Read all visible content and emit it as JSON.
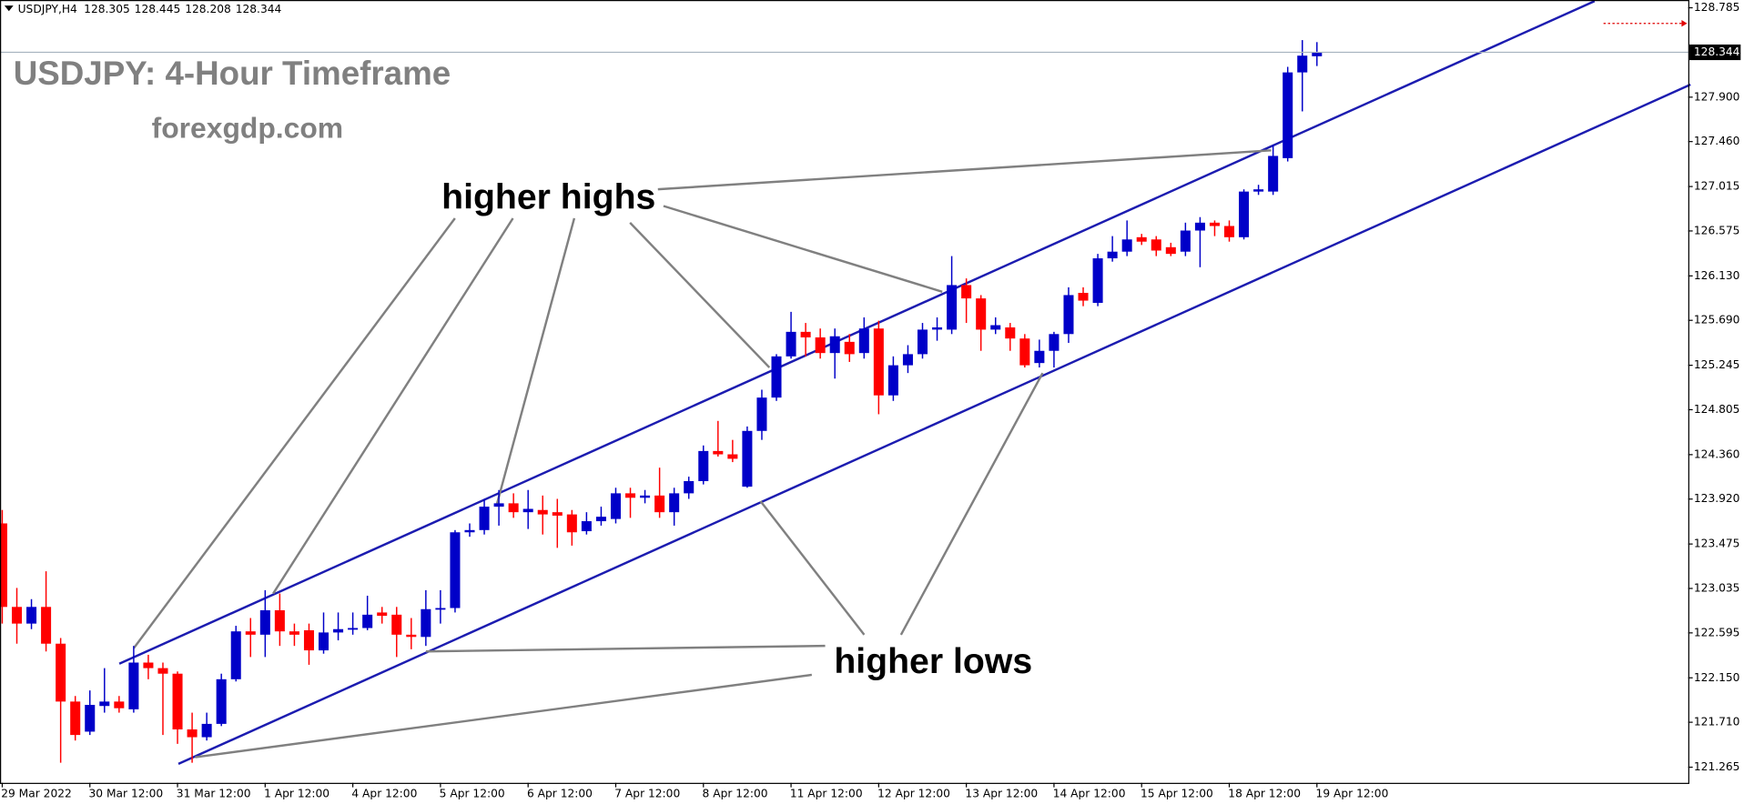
{
  "chart_data": {
    "type": "candlestick",
    "symbol": "USDJPY,H4",
    "title": "USDJPY: 4-Hour Timeframe",
    "subtitle": "forexgdp.com",
    "annotations": [
      "higher highs",
      "higher lows"
    ],
    "up_color": "#0000c8",
    "down_color": "#ff0000",
    "categories": [
      "29 Mar 2022",
      null,
      null,
      null,
      null,
      null,
      "30 Mar 12:00",
      null,
      null,
      null,
      null,
      null,
      "31 Mar 12:00",
      null,
      null,
      null,
      null,
      null,
      "1 Apr 12:00",
      null,
      null,
      null,
      null,
      null,
      "4 Apr 12:00",
      null,
      null,
      null,
      null,
      null,
      "5 Apr 12:00",
      null,
      null,
      null,
      null,
      null,
      "6 Apr 12:00",
      null,
      null,
      null,
      null,
      null,
      "7 Apr 12:00",
      null,
      null,
      null,
      null,
      null,
      "8 Apr 12:00",
      null,
      null,
      null,
      null,
      null,
      "11 Apr 12:00",
      null,
      null,
      null,
      null,
      null,
      "12 Apr 12:00",
      null,
      null,
      null,
      null,
      null,
      "13 Apr 12:00",
      null,
      null,
      null,
      null,
      null,
      "14 Apr 12:00",
      null,
      null,
      null,
      null,
      null,
      "15 Apr 12:00",
      null,
      null,
      null,
      null,
      null,
      "18 Apr 12:00",
      null,
      null,
      null,
      null,
      null,
      "19 Apr 12:00"
    ],
    "open": [
      123.679,
      122.852,
      122.687,
      122.852,
      122.488,
      121.915,
      121.617,
      121.871,
      121.915,
      121.838,
      122.301,
      122.246,
      122.191,
      121.639,
      121.562,
      121.694,
      122.136,
      122.61,
      122.577,
      122.819,
      122.61,
      122.621,
      122.422,
      122.599,
      122.632,
      122.643,
      122.797,
      122.775,
      122.577,
      122.555,
      122.83,
      122.841,
      123.591,
      123.613,
      123.845,
      123.878,
      123.79,
      123.812,
      123.79,
      123.768,
      123.602,
      123.701,
      123.723,
      123.977,
      123.933,
      123.955,
      123.79,
      123.977,
      124.098,
      124.396,
      124.363,
      124.043,
      124.595,
      124.925,
      125.333,
      125.576,
      125.521,
      125.366,
      125.477,
      125.366,
      125.609,
      124.947,
      125.245,
      125.355,
      125.598,
      125.598,
      126.039,
      125.907,
      125.598,
      125.62,
      125.51,
      125.267,
      125.388,
      125.554,
      125.962,
      125.863,
      126.304,
      126.37,
      126.513,
      126.491,
      126.414,
      126.37,
      126.579,
      126.657,
      126.624,
      126.513,
      126.965,
      126.965,
      127.296,
      128.145,
      128.305
    ],
    "high": [
      123.812,
      123.04,
      122.929,
      123.205,
      122.544,
      121.97,
      122.025,
      122.246,
      121.97,
      122.466,
      122.378,
      122.301,
      122.213,
      121.805,
      121.805,
      122.191,
      122.665,
      122.742,
      123.018,
      122.985,
      122.687,
      122.687,
      122.797,
      122.797,
      122.797,
      122.963,
      122.852,
      122.852,
      122.742,
      123.018,
      123.018,
      123.613,
      123.679,
      123.922,
      124.01,
      123.977,
      124.01,
      123.955,
      123.922,
      123.812,
      123.79,
      123.845,
      124.032,
      124.032,
      124.01,
      124.231,
      124.032,
      124.142,
      124.451,
      124.694,
      124.506,
      124.639,
      125.003,
      125.355,
      125.774,
      125.664,
      125.609,
      125.609,
      125.554,
      125.719,
      125.686,
      125.333,
      125.444,
      125.664,
      125.719,
      126.326,
      126.105,
      125.94,
      125.719,
      125.664,
      125.554,
      125.499,
      125.576,
      126.017,
      126.017,
      126.348,
      126.524,
      126.679,
      126.546,
      126.524,
      126.458,
      126.657,
      126.712,
      126.679,
      126.679,
      126.987,
      127.032,
      127.428,
      128.2,
      128.465,
      128.445
    ],
    "low": [
      122.687,
      122.488,
      122.632,
      122.411,
      121.309,
      121.529,
      121.584,
      121.805,
      121.805,
      121.805,
      122.136,
      121.584,
      121.496,
      121.309,
      121.529,
      121.672,
      122.114,
      122.356,
      122.356,
      122.466,
      122.466,
      122.279,
      122.389,
      122.521,
      122.577,
      122.621,
      122.687,
      122.356,
      122.433,
      122.466,
      122.687,
      122.797,
      123.547,
      123.569,
      123.657,
      123.734,
      123.624,
      123.569,
      123.437,
      123.459,
      123.569,
      123.657,
      123.679,
      123.734,
      123.878,
      123.734,
      123.657,
      123.922,
      124.065,
      124.341,
      124.286,
      124.032,
      124.506,
      124.892,
      125.311,
      125.333,
      125.311,
      125.113,
      125.278,
      125.311,
      124.76,
      124.892,
      125.168,
      125.311,
      125.488,
      125.554,
      125.664,
      125.388,
      125.554,
      125.388,
      125.223,
      125.223,
      125.223,
      125.466,
      125.83,
      125.83,
      126.271,
      126.326,
      126.436,
      126.326,
      126.326,
      126.326,
      126.216,
      126.524,
      126.469,
      126.491,
      126.932,
      126.932,
      127.263,
      127.759,
      128.208
    ],
    "close": [
      122.852,
      122.687,
      122.852,
      122.488,
      121.915,
      121.584,
      121.882,
      121.915,
      121.849,
      122.301,
      122.246,
      122.191,
      121.639,
      121.562,
      121.694,
      122.136,
      122.61,
      122.577,
      122.819,
      122.61,
      122.577,
      122.422,
      122.599,
      122.632,
      122.643,
      122.775,
      122.764,
      122.577,
      122.555,
      122.83,
      122.841,
      123.591,
      123.613,
      123.845,
      123.878,
      123.79,
      123.823,
      123.768,
      123.756,
      123.591,
      123.701,
      123.745,
      123.977,
      123.933,
      123.955,
      123.79,
      123.977,
      124.098,
      124.396,
      124.363,
      124.319,
      124.595,
      124.925,
      125.333,
      125.576,
      125.521,
      125.366,
      125.532,
      125.355,
      125.609,
      124.947,
      125.245,
      125.355,
      125.598,
      125.62,
      126.039,
      125.907,
      125.598,
      125.642,
      125.51,
      125.245,
      125.388,
      125.554,
      125.94,
      125.885,
      126.304,
      126.37,
      126.491,
      126.469,
      126.381,
      126.348,
      126.579,
      126.657,
      126.624,
      126.513,
      126.965,
      126.987,
      127.318,
      128.145,
      128.311,
      128.344
    ],
    "ylim": [
      121.11,
      128.862
    ],
    "yticks": [
      128.785,
      {
        "value": 127.9,
        "label": "127.900"
      },
      {
        "value": 127.46,
        "label": "127.460"
      },
      127.015,
      126.575,
      {
        "value": 126.13,
        "label": "126.130"
      },
      {
        "value": 125.69,
        "label": "125.690"
      },
      125.245,
      124.805,
      {
        "value": 124.36,
        "label": "124.360"
      },
      {
        "value": 123.92,
        "label": "123.920"
      },
      123.475,
      123.035,
      122.595,
      {
        "value": 122.15,
        "label": "122.150"
      },
      {
        "value": 121.71,
        "label": "121.710"
      },
      121.265
    ]
  }
}
